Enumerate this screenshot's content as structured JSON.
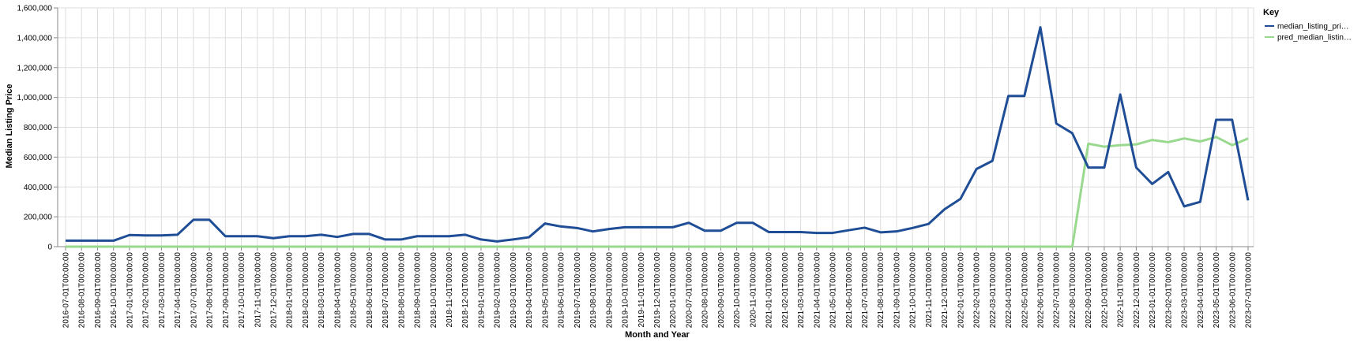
{
  "chart_data": {
    "type": "line",
    "xlabel": "Month and Year",
    "ylabel": "Median Listing Price",
    "ylim": [
      0,
      1600000
    ],
    "yticks": [
      0,
      200000,
      400000,
      600000,
      800000,
      1000000,
      1200000,
      1400000,
      1600000
    ],
    "ytick_labels": [
      "0",
      "200,000",
      "400,000",
      "600,000",
      "800,000",
      "1,000,000",
      "1,200,000",
      "1,400,000",
      "1,600,000"
    ],
    "grid": true,
    "legend": {
      "title": "Key",
      "position": "right",
      "labels": [
        "median_listing_pri…",
        "pred_median_listin…"
      ]
    },
    "x": [
      "2016-07-01T00:00:00",
      "2016-08-01T00:00:00",
      "2016-09-01T00:00:00",
      "2016-10-01T00:00:00",
      "2017-01-01T00:00:00",
      "2017-02-01T00:00:00",
      "2017-03-01T00:00:00",
      "2017-04-01T00:00:00",
      "2017-07-01T00:00:00",
      "2017-08-01T00:00:00",
      "2017-09-01T00:00:00",
      "2017-10-01T00:00:00",
      "2017-11-01T00:00:00",
      "2017-12-01T00:00:00",
      "2018-01-01T00:00:00",
      "2018-02-01T00:00:00",
      "2018-03-01T00:00:00",
      "2018-04-01T00:00:00",
      "2018-05-01T00:00:00",
      "2018-06-01T00:00:00",
      "2018-07-01T00:00:00",
      "2018-08-01T00:00:00",
      "2018-09-01T00:00:00",
      "2018-10-01T00:00:00",
      "2018-11-01T00:00:00",
      "2018-12-01T00:00:00",
      "2019-01-01T00:00:00",
      "2019-02-01T00:00:00",
      "2019-03-01T00:00:00",
      "2019-04-01T00:00:00",
      "2019-05-01T00:00:00",
      "2019-06-01T00:00:00",
      "2019-07-01T00:00:00",
      "2019-08-01T00:00:00",
      "2019-09-01T00:00:00",
      "2019-10-01T00:00:00",
      "2019-11-01T00:00:00",
      "2019-12-01T00:00:00",
      "2020-01-01T00:00:00",
      "2020-07-01T00:00:00",
      "2020-08-01T00:00:00",
      "2020-09-01T00:00:00",
      "2020-10-01T00:00:00",
      "2020-11-01T00:00:00",
      "2021-01-01T00:00:00",
      "2021-02-01T00:00:00",
      "2021-03-01T00:00:00",
      "2021-04-01T00:00:00",
      "2021-05-01T00:00:00",
      "2021-06-01T00:00:00",
      "2021-07-01T00:00:00",
      "2021-08-01T00:00:00",
      "2021-09-01T00:00:00",
      "2021-10-01T00:00:00",
      "2021-11-01T00:00:00",
      "2021-12-01T00:00:00",
      "2022-01-01T00:00:00",
      "2022-02-01T00:00:00",
      "2022-03-01T00:00:00",
      "2022-04-01T00:00:00",
      "2022-05-01T00:00:00",
      "2022-06-01T00:00:00",
      "2022-07-01T00:00:00",
      "2022-08-01T00:00:00",
      "2022-09-01T00:00:00",
      "2022-10-01T00:00:00",
      "2022-11-01T00:00:00",
      "2022-12-01T00:00:00",
      "2023-01-01T00:00:00",
      "2023-02-01T00:00:00",
      "2023-03-01T00:00:00",
      "2023-04-01T00:00:00",
      "2023-05-01T00:00:00",
      "2023-06-01T00:00:00",
      "2023-07-01T00:00:00"
    ],
    "series": [
      {
        "name": "median_listing_pri…",
        "color": "#1f4e96",
        "values": [
          40000,
          40000,
          40000,
          40000,
          78000,
          75000,
          75000,
          80000,
          180000,
          180000,
          70000,
          70000,
          70000,
          57000,
          70000,
          70000,
          80000,
          65000,
          85000,
          85000,
          48000,
          48000,
          70000,
          70000,
          70000,
          80000,
          48000,
          35000,
          48000,
          63000,
          155000,
          135000,
          125000,
          102000,
          118000,
          130000,
          130000,
          130000,
          130000,
          160000,
          107000,
          107000,
          160000,
          160000,
          98000,
          98000,
          98000,
          92000,
          92000,
          110000,
          127000,
          96000,
          102000,
          125000,
          152000,
          250000,
          320000,
          520000,
          575000,
          1010000,
          1010000,
          1470000,
          825000,
          760000,
          530000,
          530000,
          1020000,
          530000,
          420000,
          500000,
          270000,
          300000,
          850000,
          850000,
          310000
        ]
      },
      {
        "name": "pred_median_listin…",
        "color": "#98d98e",
        "values": [
          0,
          0,
          0,
          0,
          0,
          0,
          0,
          0,
          0,
          0,
          0,
          0,
          0,
          0,
          0,
          0,
          0,
          0,
          0,
          0,
          0,
          0,
          0,
          0,
          0,
          0,
          0,
          0,
          0,
          0,
          0,
          0,
          0,
          0,
          0,
          0,
          0,
          0,
          0,
          0,
          0,
          0,
          0,
          0,
          0,
          0,
          0,
          0,
          0,
          0,
          0,
          0,
          0,
          0,
          0,
          0,
          0,
          0,
          0,
          0,
          0,
          0,
          0,
          0,
          690000,
          670000,
          680000,
          685000,
          715000,
          700000,
          725000,
          705000,
          735000,
          680000,
          725000
        ]
      }
    ]
  }
}
